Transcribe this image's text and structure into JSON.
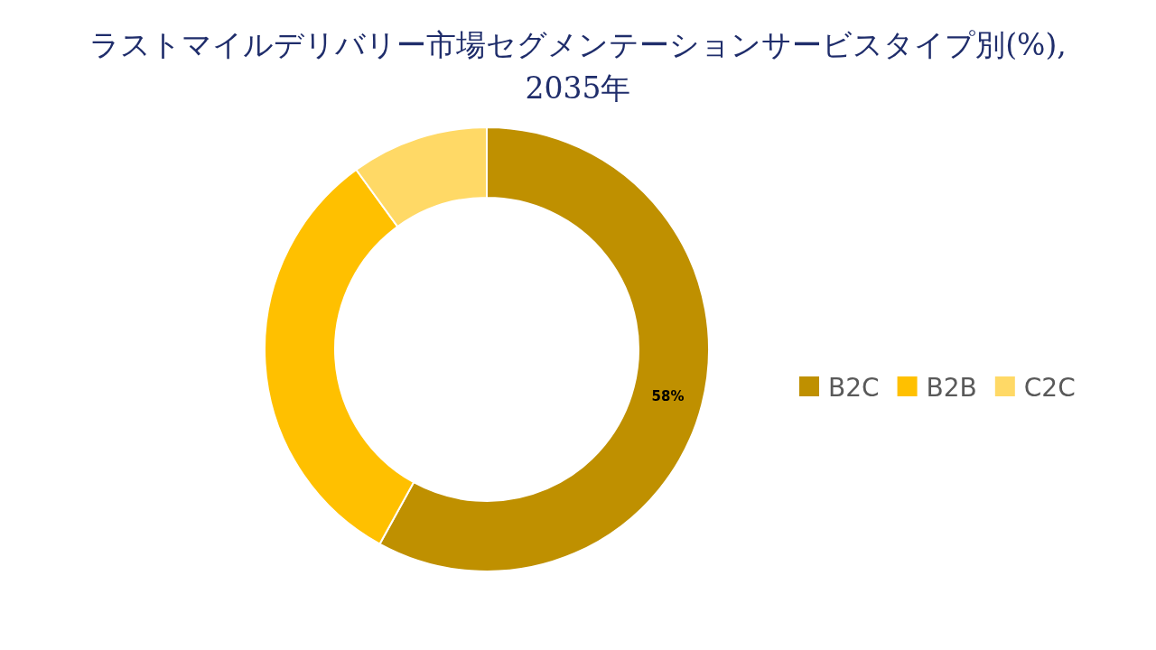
{
  "chart_data": {
    "type": "donut",
    "title": "ラストマイルデリバリー市場セグメンテーションサービスタイプ別(%), 2035年",
    "categories": [
      "B2C",
      "B2B",
      "C2C"
    ],
    "values": [
      58,
      32,
      10
    ],
    "colors": [
      "#bf9000",
      "#ffc000",
      "#ffd966"
    ],
    "value_labels": [
      "58%",
      null,
      null
    ],
    "legend": "right"
  }
}
